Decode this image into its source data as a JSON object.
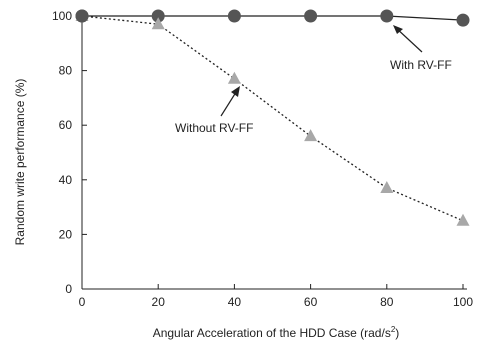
{
  "chart_data": {
    "type": "line",
    "xlabel": "Angular Acceleration of the HDD Case (rad/s",
    "xlabel_sup": "2",
    "xlabel_close": ")",
    "ylabel": "Random write performance (%)",
    "xlim": [
      0,
      100
    ],
    "ylim": [
      0,
      100
    ],
    "xticks": [
      0,
      20,
      40,
      60,
      80,
      100
    ],
    "yticks": [
      0,
      20,
      40,
      60,
      80,
      100
    ],
    "grid": false,
    "x": [
      0,
      20,
      40,
      60,
      80,
      100
    ],
    "series": [
      {
        "name": "With RV-FF",
        "values": [
          100,
          100,
          100,
          100,
          100,
          98.5
        ],
        "marker": "circle",
        "line": "solid",
        "color": "#555555"
      },
      {
        "name": "Without RV-FF",
        "values": [
          100,
          97,
          77,
          56,
          37,
          25
        ],
        "marker": "triangle",
        "line": "dotted",
        "color": "#a8a8a8"
      }
    ],
    "annotations": [
      {
        "text": "With RV-FF",
        "series": 0
      },
      {
        "text": "Without RV-FF",
        "series": 1
      }
    ]
  }
}
